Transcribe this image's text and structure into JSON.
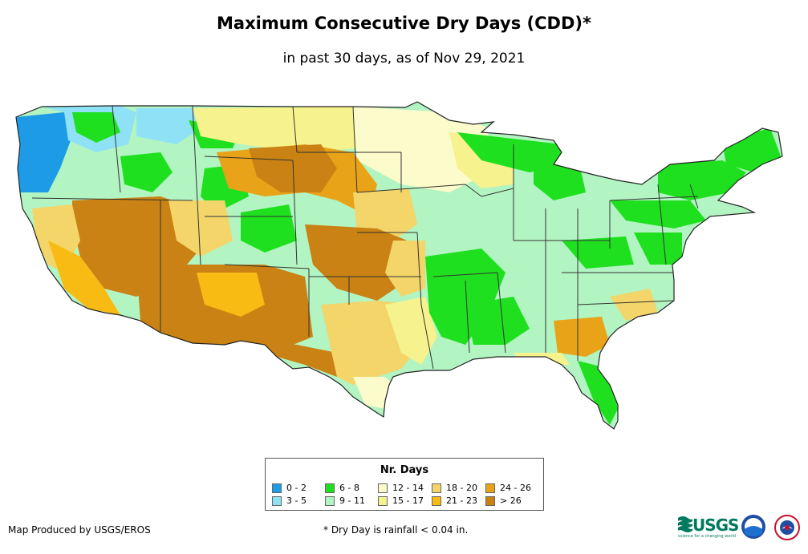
{
  "title": "Maximum Consecutive Dry Days (CDD)*",
  "subtitle": "in past 30 days, as of Nov 29, 2021",
  "legend": {
    "title": "Nr. Days",
    "items": [
      {
        "label": "0 - 2",
        "color": "#1e9be6"
      },
      {
        "label": "3 - 5",
        "color": "#8fe1f5"
      },
      {
        "label": "6 - 8",
        "color": "#1ee01e"
      },
      {
        "label": "9 - 11",
        "color": "#b2f4c2"
      },
      {
        "label": "12 - 14",
        "color": "#fbfbcb"
      },
      {
        "label": "15 - 17",
        "color": "#f6f28e"
      },
      {
        "label": "18 - 20",
        "color": "#f4d56a"
      },
      {
        "label": "21 - 23",
        "color": "#f7bb14"
      },
      {
        "label": "24 - 26",
        "color": "#e8a318"
      },
      {
        "label": "> 26",
        "color": "#c98213"
      }
    ]
  },
  "footer": {
    "credit": "Map Produced by USGS/EROS",
    "note": "* Dry Day is rainfall < 0.04 in."
  },
  "logos": {
    "usgs": "USGS",
    "usgs_tagline": "science for a changing world",
    "noaa": "noaa",
    "nws_icon": "national-weather-service-icon"
  }
}
